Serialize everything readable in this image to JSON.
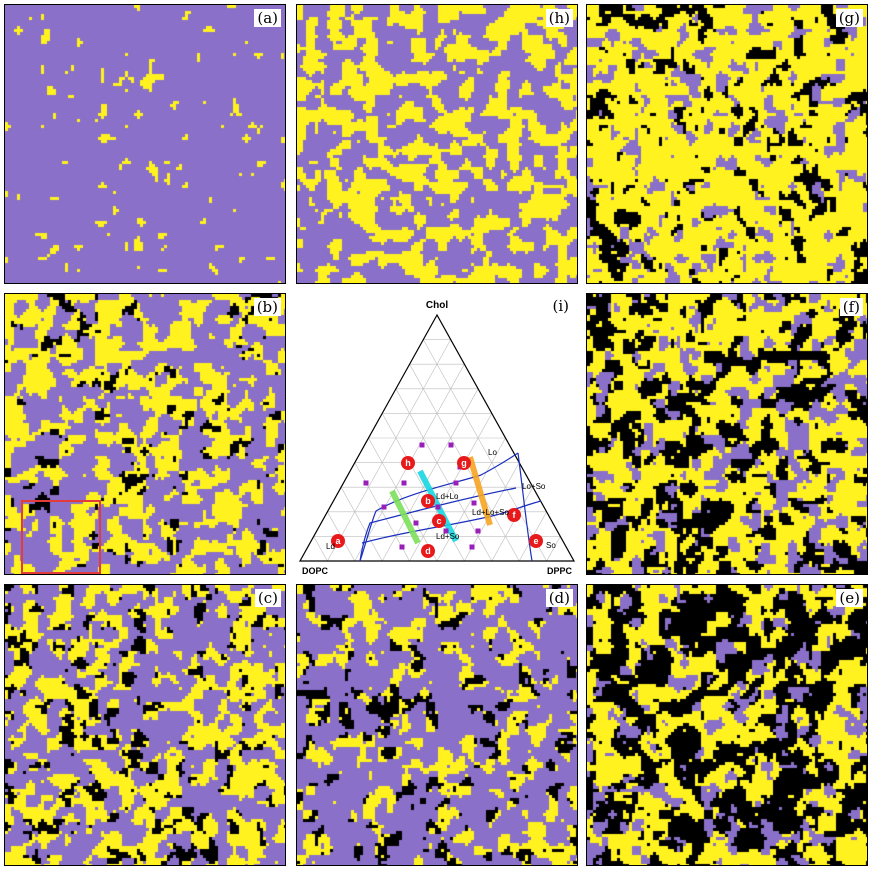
{
  "colors": {
    "fluid": "#8a70c8",
    "ordered": "#fff21f",
    "gel": "#000000",
    "highlight": "#e23b3b"
  },
  "panels": [
    {
      "id": "a",
      "label": "(a)",
      "fractions": {
        "ordered": 0.04,
        "gel": 0.0
      }
    },
    {
      "id": "h",
      "label": "(h)",
      "fractions": {
        "ordered": 0.45,
        "gel": 0.0
      }
    },
    {
      "id": "g",
      "label": "(g)",
      "fractions": {
        "ordered": 0.7,
        "gel": 0.15
      }
    },
    {
      "id": "b",
      "label": "(b)",
      "fractions": {
        "ordered": 0.42,
        "gel": 0.06
      }
    },
    {
      "id": "f",
      "label": "(f)",
      "fractions": {
        "ordered": 0.5,
        "gel": 0.3
      }
    },
    {
      "id": "c",
      "label": "(c)",
      "fractions": {
        "ordered": 0.38,
        "gel": 0.12
      }
    },
    {
      "id": "d",
      "label": "(d)",
      "fractions": {
        "ordered": 0.22,
        "gel": 0.12
      }
    },
    {
      "id": "e",
      "label": "(e)",
      "fractions": {
        "ordered": 0.4,
        "gel": 0.45
      }
    }
  ],
  "ternary": {
    "label": "(i)",
    "apex_top": "Chol",
    "apex_left": "DOPC",
    "apex_right": "DPPC",
    "region_labels": [
      "Lo",
      "Ld+Lo",
      "Lo+So",
      "Ld+Lo+So",
      "Ld+So",
      "So",
      "Ld"
    ],
    "point_labels": [
      "a",
      "b",
      "c",
      "d",
      "f",
      "g",
      "h",
      "e"
    ]
  }
}
